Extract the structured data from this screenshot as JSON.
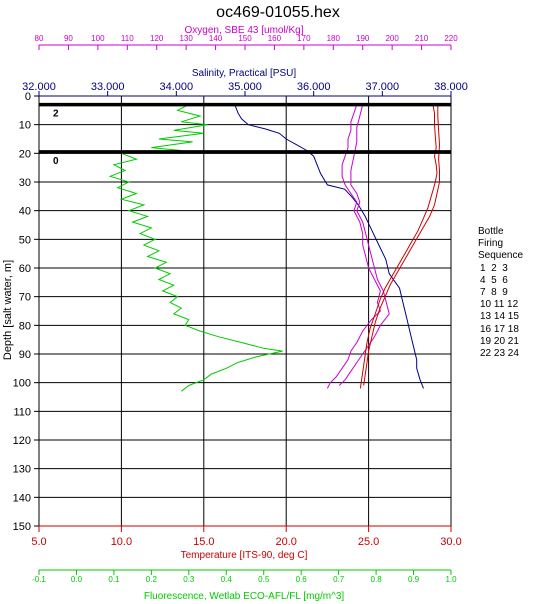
{
  "chart_data": {
    "type": "line",
    "title": "oc469-01055.hex",
    "y_axis": {
      "label": "Depth [salt water, m]",
      "range": [
        0,
        150
      ],
      "inverted": true,
      "ticks": [
        0,
        10,
        20,
        30,
        40,
        50,
        60,
        70,
        80,
        90,
        100,
        110,
        120,
        130,
        140,
        150
      ]
    },
    "x_axes": [
      {
        "key": "oxygen",
        "label": "Oxygen, SBE 43 [umol/Kg]",
        "position": "top",
        "range": [
          80,
          220
        ],
        "ticks": [
          80,
          90,
          100,
          110,
          120,
          130,
          140,
          150,
          160,
          170,
          180,
          190,
          200,
          210,
          220
        ],
        "tick_labels": [
          "80",
          "90",
          "100",
          "110",
          "120",
          "130",
          "140",
          "150",
          "160",
          "170",
          "180",
          "190",
          "200",
          "210",
          "220"
        ],
        "color": "#cc00cc"
      },
      {
        "key": "salinity",
        "label": "Salinity, Practical [PSU]",
        "position": "top",
        "range": [
          32,
          38
        ],
        "ticks": [
          32,
          33,
          34,
          35,
          36,
          37,
          38
        ],
        "tick_labels": [
          "32.000",
          "33.000",
          "34.000",
          "35.000",
          "36.000",
          "37.000",
          "38.000"
        ],
        "color": "#000080"
      },
      {
        "key": "temperature",
        "label": "Temperature [ITS-90, deg C]",
        "position": "bottom",
        "range": [
          5,
          30
        ],
        "ticks": [
          5,
          10,
          15,
          20,
          25,
          30
        ],
        "tick_labels": [
          "5.0",
          "10.0",
          "15.0",
          "20.0",
          "25.0",
          "30.0"
        ],
        "color": "#cc0000"
      },
      {
        "key": "fluorescence",
        "label": "Fluorescence, Wetlab ECO-AFL/FL [mg/m^3]",
        "position": "bottom",
        "range": [
          -0.1,
          1.0
        ],
        "ticks": [
          -0.1,
          0.0,
          0.1,
          0.2,
          0.3,
          0.4,
          0.5,
          0.6,
          0.7,
          0.8,
          0.9,
          1.0
        ],
        "tick_labels": [
          "-0.1",
          "0.0",
          "0.1",
          "0.2",
          "0.3",
          "0.4",
          "0.5",
          "0.6",
          "0.7",
          "0.8",
          "0.9",
          "1.0"
        ],
        "color": "#00cc00"
      }
    ],
    "bottle_lines": [
      {
        "depth": 3,
        "label": "2"
      },
      {
        "depth": 19.5,
        "label": "0"
      }
    ],
    "series": [
      {
        "axis": "salinity",
        "color": "#000080",
        "points": [
          [
            34.85,
            3
          ],
          [
            34.9,
            6
          ],
          [
            34.95,
            8
          ],
          [
            35.05,
            10
          ],
          [
            35.3,
            11.5
          ],
          [
            35.5,
            13
          ],
          [
            35.6,
            15
          ],
          [
            35.75,
            17
          ],
          [
            35.9,
            19
          ],
          [
            36.0,
            21
          ],
          [
            36.05,
            24
          ],
          [
            36.1,
            27
          ],
          [
            36.2,
            31
          ],
          [
            36.45,
            32.5
          ],
          [
            36.55,
            35
          ],
          [
            36.65,
            38
          ],
          [
            36.75,
            42
          ],
          [
            36.85,
            47
          ],
          [
            36.95,
            52
          ],
          [
            37.05,
            57
          ],
          [
            37.1,
            62
          ],
          [
            37.25,
            67
          ],
          [
            37.3,
            72
          ],
          [
            37.35,
            77
          ],
          [
            37.4,
            82
          ],
          [
            37.45,
            87
          ],
          [
            37.5,
            92
          ],
          [
            37.5,
            95
          ],
          [
            37.55,
            99
          ],
          [
            37.6,
            102
          ]
        ]
      },
      {
        "axis": "oxygen",
        "color": "#cc00cc",
        "points": [
          [
            188,
            3
          ],
          [
            187,
            6
          ],
          [
            186,
            9
          ],
          [
            186,
            12
          ],
          [
            185,
            15
          ],
          [
            185,
            18
          ],
          [
            184,
            21
          ],
          [
            183,
            24
          ],
          [
            183,
            28
          ],
          [
            184,
            31
          ],
          [
            186,
            34
          ],
          [
            188,
            37
          ],
          [
            187,
            40
          ],
          [
            189,
            44
          ],
          [
            190,
            48
          ],
          [
            190,
            52
          ],
          [
            191,
            56
          ],
          [
            192,
            60
          ],
          [
            194,
            64
          ],
          [
            196,
            68
          ],
          [
            195,
            72
          ],
          [
            196,
            75
          ],
          [
            193,
            78
          ],
          [
            190,
            82
          ],
          [
            188,
            86
          ],
          [
            186,
            89
          ],
          [
            185,
            92
          ],
          [
            183,
            95
          ],
          [
            181,
            98
          ],
          [
            179,
            100
          ],
          [
            178,
            102
          ]
        ]
      },
      {
        "axis": "oxygen",
        "color": "#cc00cc",
        "points": [
          [
            190,
            3
          ],
          [
            189,
            7
          ],
          [
            188,
            11
          ],
          [
            188,
            16
          ],
          [
            187,
            21
          ],
          [
            186,
            26
          ],
          [
            186,
            31
          ],
          [
            188,
            34
          ],
          [
            189,
            37
          ],
          [
            188,
            40
          ],
          [
            190,
            44
          ],
          [
            191,
            48
          ],
          [
            192,
            52
          ],
          [
            193,
            56
          ],
          [
            194,
            60
          ],
          [
            195,
            64
          ],
          [
            197,
            68
          ],
          [
            198,
            72
          ],
          [
            199,
            76
          ],
          [
            196,
            80
          ],
          [
            194,
            84
          ],
          [
            192,
            87
          ],
          [
            190,
            90
          ],
          [
            188,
            93
          ],
          [
            186,
            96
          ],
          [
            184,
            99
          ],
          [
            182,
            101
          ]
        ]
      },
      {
        "axis": "temperature",
        "color": "#cc0000",
        "points": [
          [
            28.9,
            3
          ],
          [
            29.0,
            6
          ],
          [
            29.0,
            10
          ],
          [
            29.05,
            14
          ],
          [
            29.1,
            18
          ],
          [
            29.0,
            21
          ],
          [
            29.1,
            24
          ],
          [
            29.15,
            27
          ],
          [
            29.05,
            30
          ],
          [
            28.9,
            33
          ],
          [
            28.75,
            36
          ],
          [
            28.6,
            39
          ],
          [
            28.3,
            43
          ],
          [
            28.0,
            47
          ],
          [
            27.6,
            51
          ],
          [
            27.2,
            55
          ],
          [
            26.8,
            59
          ],
          [
            26.4,
            63
          ],
          [
            26.0,
            67
          ],
          [
            25.7,
            71
          ],
          [
            25.4,
            76
          ],
          [
            25.1,
            81
          ],
          [
            24.9,
            86
          ],
          [
            24.8,
            90
          ],
          [
            24.7,
            94
          ],
          [
            24.6,
            98
          ],
          [
            24.5,
            102
          ]
        ]
      },
      {
        "axis": "temperature",
        "color": "#cc0000",
        "points": [
          [
            29.2,
            3
          ],
          [
            29.2,
            7
          ],
          [
            29.25,
            12
          ],
          [
            29.3,
            17
          ],
          [
            29.25,
            22
          ],
          [
            29.3,
            26
          ],
          [
            29.3,
            30
          ],
          [
            29.15,
            34
          ],
          [
            29.0,
            38
          ],
          [
            28.7,
            42
          ],
          [
            28.3,
            46
          ],
          [
            27.9,
            50
          ],
          [
            27.5,
            54
          ],
          [
            27.1,
            58
          ],
          [
            26.7,
            62
          ],
          [
            26.3,
            66
          ],
          [
            26.0,
            70
          ],
          [
            25.7,
            74
          ],
          [
            25.4,
            79
          ],
          [
            25.2,
            84
          ],
          [
            25.0,
            89
          ],
          [
            24.9,
            93
          ],
          [
            24.8,
            97
          ],
          [
            24.7,
            101
          ]
        ]
      },
      {
        "axis": "fluorescence",
        "color": "#00cc00",
        "points": [
          [
            0.3,
            3
          ],
          [
            0.27,
            5
          ],
          [
            0.33,
            7
          ],
          [
            0.28,
            9
          ],
          [
            0.35,
            10
          ],
          [
            0.26,
            12
          ],
          [
            0.34,
            13
          ],
          [
            0.22,
            15
          ],
          [
            0.31,
            16
          ],
          [
            0.2,
            18
          ],
          [
            0.28,
            19
          ],
          [
            0.12,
            20
          ],
          [
            0.16,
            22
          ],
          [
            0.1,
            24
          ],
          [
            0.13,
            26
          ],
          [
            0.09,
            28
          ],
          [
            0.14,
            30
          ],
          [
            0.11,
            32
          ],
          [
            0.16,
            34
          ],
          [
            0.12,
            36
          ],
          [
            0.18,
            38
          ],
          [
            0.14,
            40
          ],
          [
            0.19,
            42
          ],
          [
            0.15,
            44
          ],
          [
            0.2,
            46
          ],
          [
            0.17,
            48
          ],
          [
            0.21,
            50
          ],
          [
            0.18,
            52
          ],
          [
            0.22,
            54
          ],
          [
            0.19,
            56
          ],
          [
            0.24,
            58
          ],
          [
            0.21,
            60
          ],
          [
            0.25,
            62
          ],
          [
            0.22,
            64
          ],
          [
            0.26,
            66
          ],
          [
            0.23,
            68
          ],
          [
            0.27,
            70
          ],
          [
            0.25,
            72
          ],
          [
            0.28,
            74
          ],
          [
            0.26,
            76
          ],
          [
            0.3,
            78
          ],
          [
            0.29,
            80
          ],
          [
            0.33,
            82
          ],
          [
            0.38,
            84
          ],
          [
            0.44,
            86
          ],
          [
            0.5,
            88
          ],
          [
            0.55,
            89
          ],
          [
            0.48,
            91
          ],
          [
            0.43,
            93
          ],
          [
            0.4,
            95
          ],
          [
            0.36,
            97
          ],
          [
            0.34,
            99
          ],
          [
            0.3,
            101
          ],
          [
            0.28,
            103
          ]
        ]
      }
    ],
    "legend": {
      "title_lines": [
        "Bottle",
        "Firing",
        "Sequence"
      ],
      "rows": [
        "1  2  3",
        "4  5  6",
        "7  8  9",
        "10 11 12",
        "13 14 15",
        "16 17 18",
        "19 20 21",
        "22 23 24"
      ]
    }
  }
}
